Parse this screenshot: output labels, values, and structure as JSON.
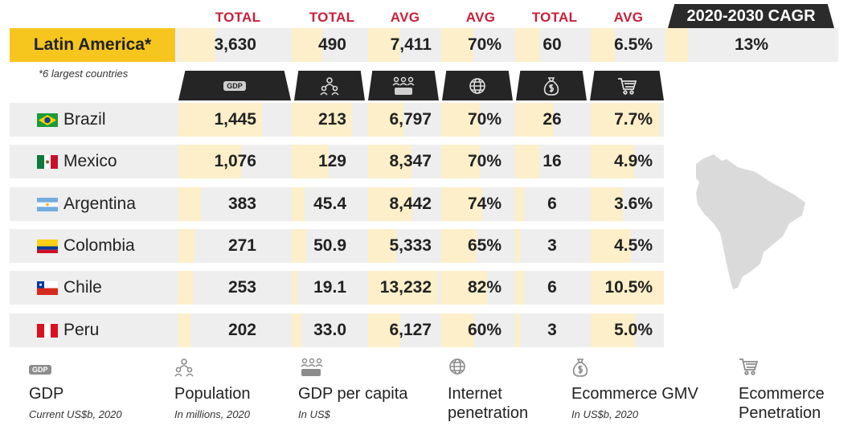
{
  "headers": [
    "TOTAL",
    "TOTAL",
    "AVG",
    "AVG",
    "TOTAL",
    "AVG"
  ],
  "cagr_label": "2020-2030 CAGR",
  "region": {
    "name": "Latin America*",
    "values": [
      "3,630",
      "490",
      "7,411",
      "70%",
      "60",
      "6.5%"
    ],
    "cagr": "13%"
  },
  "footnote": "*6 largest countries",
  "icon_labels": {
    "gdp": "GDP"
  },
  "countries": [
    {
      "name": "Brazil",
      "values": [
        "1,445",
        "213",
        "6,797",
        "70%",
        "26",
        "7.7%"
      ]
    },
    {
      "name": "Mexico",
      "values": [
        "1,076",
        "129",
        "8,347",
        "70%",
        "16",
        "4.9%"
      ]
    },
    {
      "name": "Argentina",
      "values": [
        "383",
        "45.4",
        "8,442",
        "74%",
        "6",
        "3.6%"
      ]
    },
    {
      "name": "Colombia",
      "values": [
        "271",
        "50.9",
        "5,333",
        "65%",
        "3",
        "4.5%"
      ]
    },
    {
      "name": "Chile",
      "values": [
        "253",
        "19.1",
        "13,232",
        "82%",
        "6",
        "10.5%"
      ]
    },
    {
      "name": "Peru",
      "values": [
        "202",
        "33.0",
        "6,127",
        "60%",
        "3",
        "5.0%"
      ]
    }
  ],
  "legend": [
    {
      "icon": "gdp-icon",
      "title": "GDP",
      "subtitle": "Current US$b, 2020"
    },
    {
      "icon": "population-icon",
      "title": "Population",
      "subtitle": "In millions, 2020"
    },
    {
      "icon": "gdp-per-capita-icon",
      "title": "GDP per capita",
      "subtitle": "In US$"
    },
    {
      "icon": "globe-icon",
      "title": "Internet penetration",
      "subtitle": ""
    },
    {
      "icon": "money-bag-icon",
      "title": "Ecommerce GMV",
      "subtitle": "In US$b, 2020"
    },
    {
      "icon": "cart-icon",
      "title": "Ecommerce Penetration",
      "subtitle": ""
    }
  ],
  "colors": {
    "accent_red": "#c8203a",
    "region_yellow": "#f6c61e",
    "bar_cream": "#fcefc9",
    "row_gray": "#eeeeee",
    "tab_dark": "#252525"
  }
}
